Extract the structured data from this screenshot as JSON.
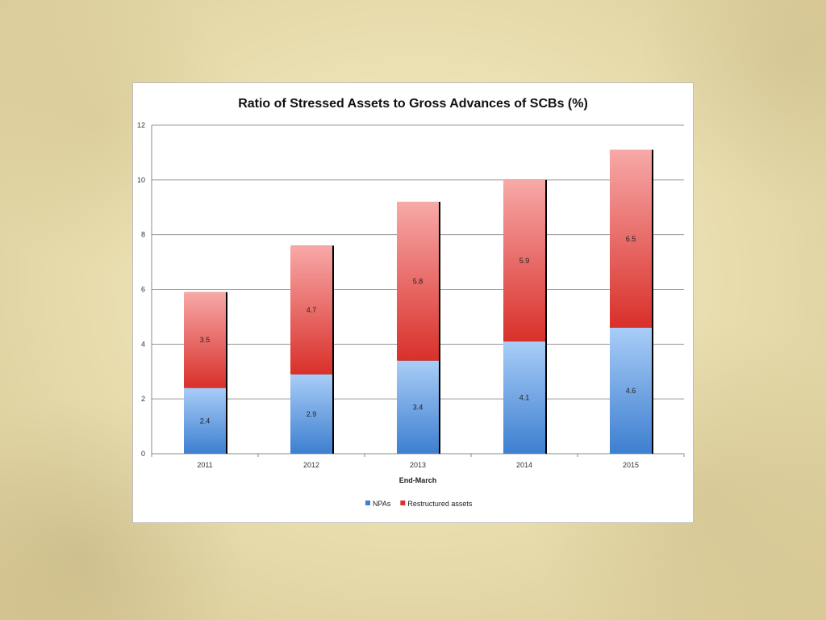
{
  "colors": {
    "npa_top": "#a9cdf7",
    "npa_bottom": "#3d7fd0",
    "restructured_top": "#f7a9a8",
    "restructured_bottom": "#d9302a"
  },
  "chart_data": {
    "type": "bar",
    "stacked": true,
    "title": "Ratio of Stressed Assets to Gross Advances of SCBs (%)",
    "xlabel": "End-March",
    "ylabel": "",
    "ylim": [
      0,
      12
    ],
    "yticks": [
      0,
      2,
      4,
      6,
      8,
      10,
      12
    ],
    "categories": [
      "2011",
      "2012",
      "2013",
      "2014",
      "2015"
    ],
    "series": [
      {
        "name": "NPAs",
        "values": [
          2.4,
          2.9,
          3.4,
          4.1,
          4.6
        ]
      },
      {
        "name": "Restructured  assets",
        "values": [
          3.5,
          4.7,
          5.8,
          5.9,
          6.5
        ]
      }
    ],
    "grid": true,
    "legend": "bottom"
  }
}
